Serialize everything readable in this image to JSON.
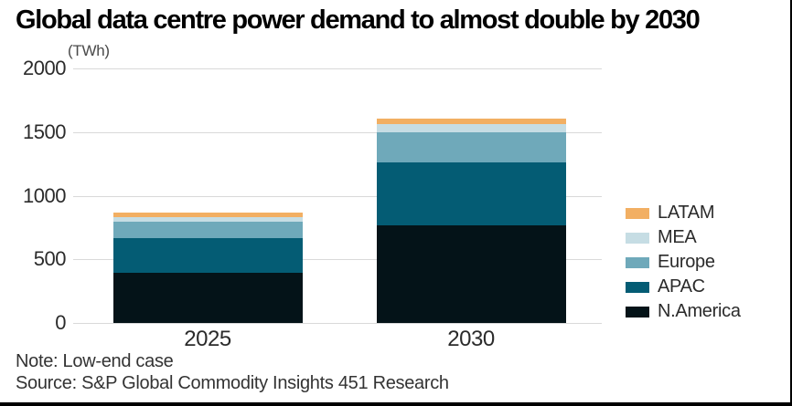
{
  "title": "Global data centre power demand to almost double by 2030",
  "note": "Note: Low-end case",
  "source": "Source: S&P Global Commodity Insights 451 Research",
  "colors": {
    "background": "#ffffff",
    "frame_border": "#000000",
    "gridline": "#d9d9d9",
    "title_text": "#000000",
    "axis_text": "#2b2b2b",
    "footer_text": "#333333"
  },
  "chart_data": {
    "type": "bar",
    "stacked": true,
    "title": "Global data centre power demand to almost double by 2030",
    "ylabel": "(TWh)",
    "xlabel": "",
    "categories": [
      "2025",
      "2030"
    ],
    "series": [
      {
        "name": "N.America",
        "color": "#041318",
        "values": [
          395,
          765
        ]
      },
      {
        "name": "APAC",
        "color": "#045C74",
        "values": [
          270,
          495
        ]
      },
      {
        "name": "Europe",
        "color": "#6FA9BA",
        "values": [
          130,
          235
        ]
      },
      {
        "name": "MEA",
        "color": "#C6DDE4",
        "values": [
          40,
          65
        ]
      },
      {
        "name": "LATAM",
        "color": "#F2AF63",
        "values": [
          35,
          45
        ]
      }
    ],
    "totals": [
      870,
      1605
    ],
    "ylim": [
      0,
      2000
    ],
    "yticks": [
      0,
      500,
      1000,
      1500,
      2000
    ],
    "grid": "horizontal",
    "legend_position": "right",
    "legend_order": [
      "LATAM",
      "MEA",
      "Europe",
      "APAC",
      "N.America"
    ]
  }
}
